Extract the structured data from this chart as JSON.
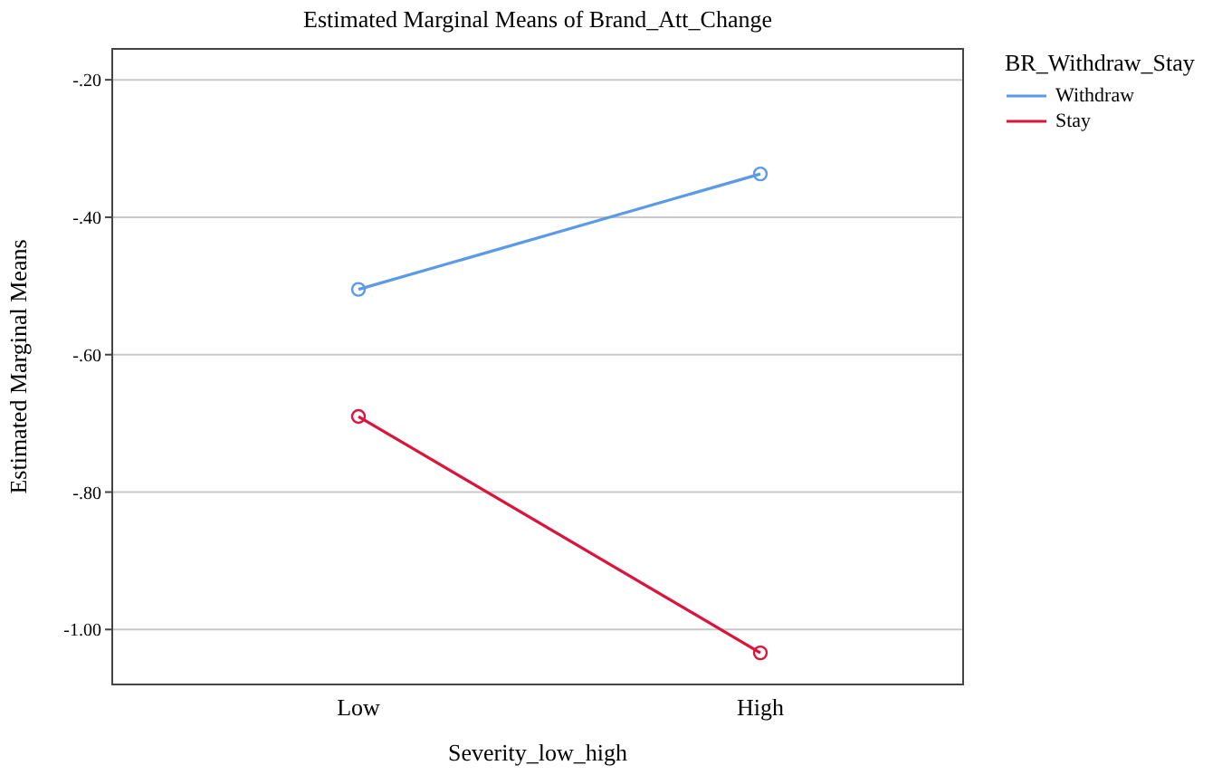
{
  "chart_data": {
    "type": "line",
    "title": "Estimated Marginal Means of Brand_Att_Change",
    "xlabel": "Severity_low_high",
    "ylabel": "Estimated Marginal Means",
    "legend_title": "BR_Withdraw_Stay",
    "categories": [
      "Low",
      "High"
    ],
    "series": [
      {
        "name": "Withdraw",
        "color": "#5b9be6",
        "values": [
          -0.505,
          -0.337
        ]
      },
      {
        "name": "Stay",
        "color": "#dc143c",
        "values": [
          -0.69,
          -1.034
        ]
      }
    ],
    "ylim": [
      -1.08,
      -0.155
    ],
    "yticks": [
      {
        "value": -0.2,
        "label": "-.20"
      },
      {
        "value": -0.4,
        "label": "-.40"
      },
      {
        "value": -0.6,
        "label": "-.60"
      },
      {
        "value": -0.8,
        "label": "-.80"
      },
      {
        "value": -1.0,
        "label": "-1.00"
      }
    ],
    "grid": "y",
    "legend": "top right",
    "marker": "circle",
    "line_style": "solid"
  }
}
